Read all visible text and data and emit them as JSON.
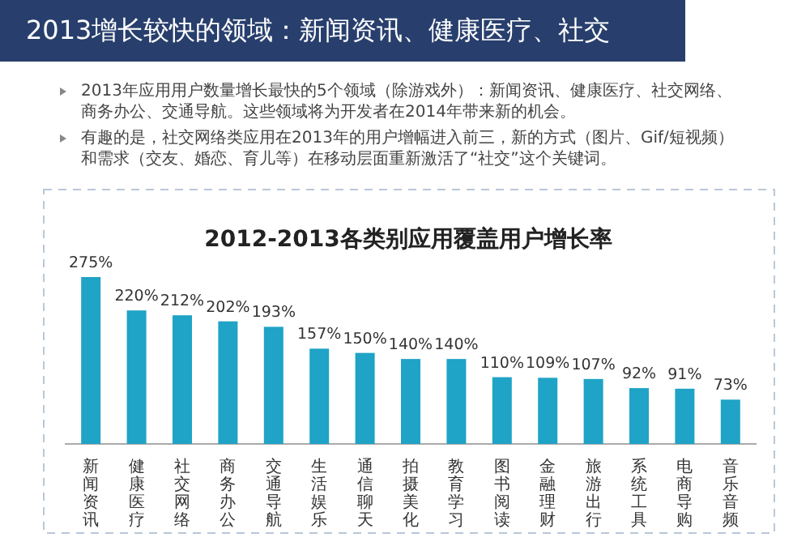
{
  "chart_data": {
    "type": "bar",
    "title": "2012-2013各类别应用覆盖用户增长率",
    "annotations": [
      "2013增长较快的领域：新闻资讯、健康医疗、社交",
      "2013年应用用户数量增长最快的5个领域（除游戏外）：新闻资讯、健康医疗、社交网络、商务办公、交通导航。这些领域将为开发者在2014年带来新的机会。",
      "有趣的是，社交网络类应用在2013年的用户增幅进入前三，新的方式（图片、Gif/短视频）和需求（交友、婚恋、育儿等）在移动层面重新激活了“社交”这个关键词。"
    ],
    "categories": [
      "新闻资讯",
      "健康医疗",
      "社交网络",
      "商务办公",
      "交通导航",
      "生活娱乐",
      "通信聊天",
      "拍摄美化",
      "教育学习",
      "图书阅读",
      "金融理财",
      "旅游出行",
      "系统工具",
      "电商导购",
      "音乐音频"
    ],
    "values": [
      275,
      220,
      212,
      202,
      193,
      157,
      150,
      140,
      140,
      110,
      109,
      107,
      92,
      91,
      73
    ],
    "value_labels": [
      "275%",
      "220%",
      "212%",
      "202%",
      "193%",
      "157%",
      "150%",
      "140%",
      "140%",
      "110%",
      "109%",
      "107%",
      "92%",
      "91%",
      "73%"
    ],
    "color": "#1fa3c6"
  }
}
